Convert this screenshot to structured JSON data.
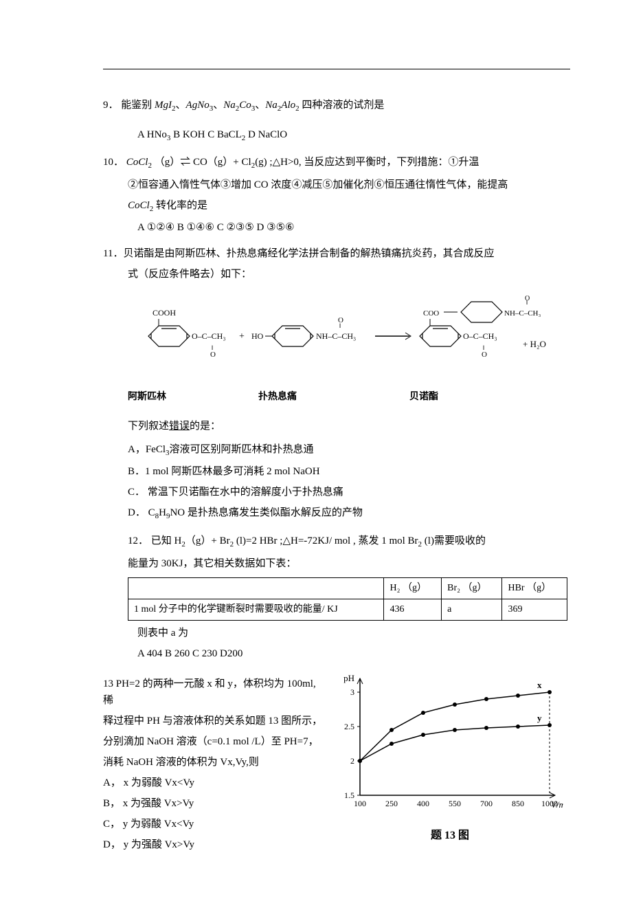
{
  "q9": {
    "num": "9．",
    "stem_parts": [
      "能鉴别 ",
      "MgI",
      "2",
      "、",
      "AgNo",
      "3",
      "、",
      "Na",
      "2",
      "Co",
      "3",
      "、",
      "Na",
      "2",
      "Alo",
      "2",
      " 四种溶液的试剂是"
    ],
    "opts": [
      "A  HNo",
      "3",
      "   B  KOH",
      "   C  BaCL",
      "2",
      "      D  NaClO"
    ]
  },
  "q10": {
    "num": "10．",
    "line1_a": "CoCl",
    "line1_b": "（g）⇌ CO（g）+  Cl",
    "line1_c": "(g) ;△H>0, 当反应达到平衡时，下列措施：①升温",
    "line2": "②恒容通入惰性气体③增加 CO 浓度④减压⑤加催化剂⑥恒压通往惰性气体，能提高",
    "line3_a": "CoCl",
    "line3_b": " 转化率的是",
    "opts": "A  ①②④          B  ①④⑥      C  ②③⑤           D  ③⑤⑥"
  },
  "q11": {
    "num": "11．",
    "stem1": "贝诺酯是由阿斯匹林、扑热息痛经化学法拼合制备的解热镇痛抗炎药，其合成反应",
    "stem2": "式（反应条件略去）如下：",
    "labels": [
      "阿斯匹林",
      "扑热息痛",
      "贝诺酯"
    ],
    "prompt": "下列叙述错误的是：",
    "A_a": "A，FeCl",
    "A_b": "溶液可区别阿斯匹林和扑热息通",
    "B": "B．1 mol 阿斯匹林最多可消耗 2 mol  NaOH",
    "C": "C．  常温下贝诺酯在水中的溶解度小于扑热息痛",
    "D_a": "D．   C",
    "D_b": "H",
    "D_c": "NO 是扑热息痛发生类似酯水解反应的产物",
    "D_sub1": "8",
    "D_sub2": "9"
  },
  "q12": {
    "num": "12．",
    "stem_a": "已知 H",
    "stem_b": "（g）+ Br",
    "stem_c": " (l)=2 HBr ;△H=-72KJ/ mol , 蒸发 1 mol Br",
    "stem_d": " (l)需要吸收的",
    "line2": "能量为 30KJ，其它相关数据如下表：",
    "table": {
      "headers": [
        "",
        "H₂ （g）",
        "Br₂ （g）",
        "HBr （g）"
      ],
      "row_label": "1 mol 分子中的化学键断裂时需要吸收的能量/ KJ",
      "row": [
        "436",
        "a",
        "369"
      ]
    },
    "after": "则表中 a 为",
    "opts": "A   404     B   260        C  230       D200"
  },
  "q13": {
    "num": "13",
    "l1": " PH=2 的两种一元酸 x 和 y，体积均为 100ml,稀",
    "l2": "释过程中 PH 与溶液体积的关系如题 13 图所示，",
    "l3": "分别滴加 NaOH 溶液（c=0.1 mol /L）至 PH=7，",
    "l4": "消耗 NaOH 溶液的体积为 Vx,Vy,则",
    "A": "A， x  为弱酸 Vx<Vy",
    "B": "B， x  为强酸 Vx>Vy",
    "C": "C， y  为弱酸 Vx<Vy",
    "D": "D， y  为强酸 Vx>Vy",
    "caption": "题 13 图",
    "chart": {
      "type": "line",
      "x_label": "V/mL",
      "y_label": "pH",
      "x_ticks": [
        100,
        250,
        400,
        550,
        700,
        850,
        1000
      ],
      "y_ticks": [
        1.5,
        2,
        2.5,
        3
      ],
      "xlim": [
        100,
        1000
      ],
      "ylim": [
        1.5,
        3.2
      ],
      "series": [
        {
          "name": "x",
          "color": "#000000",
          "marker": "circle",
          "x": [
            100,
            250,
            400,
            550,
            700,
            850,
            1000
          ],
          "y": [
            2.0,
            2.45,
            2.7,
            2.82,
            2.9,
            2.95,
            3.0
          ]
        },
        {
          "name": "y",
          "color": "#000000",
          "marker": "circle",
          "x": [
            100,
            250,
            400,
            550,
            700,
            850,
            1000
          ],
          "y": [
            2.0,
            2.25,
            2.38,
            2.45,
            2.48,
            2.5,
            2.52
          ]
        }
      ],
      "axis_color": "#000000",
      "background": "#ffffff",
      "label_fontsize": 13,
      "tick_fontsize": 12,
      "line_width": 1.5,
      "marker_size": 3
    },
    "reaction_svg": {
      "stroke": "#000000",
      "text_color": "#000000",
      "font_size": 12,
      "font_size_small": 9
    }
  }
}
